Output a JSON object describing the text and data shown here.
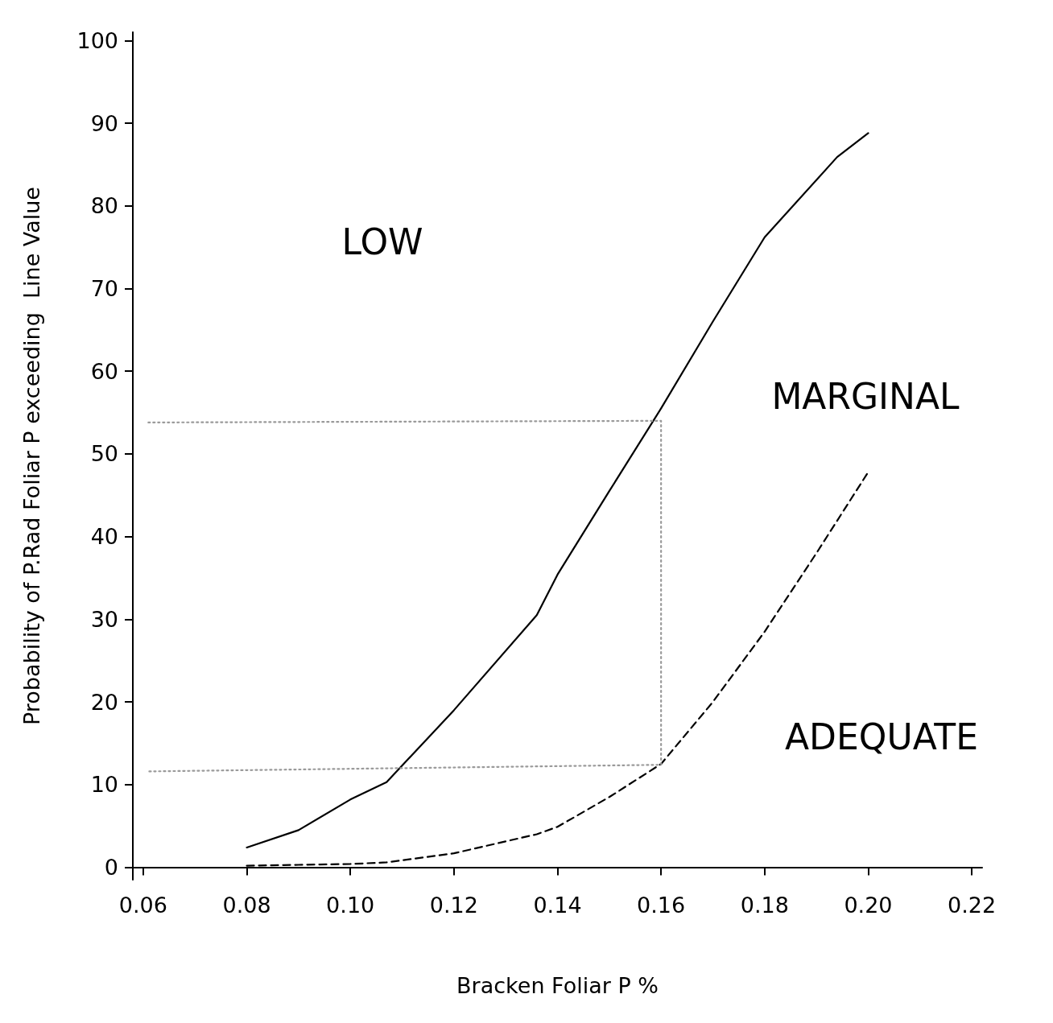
{
  "chart_data": {
    "type": "line",
    "xlabel": "Bracken Foliar P %",
    "ylabel": "Probability of P.Rad Foliar P exceeding  Line Value",
    "xlim": [
      0.058,
      0.222
    ],
    "xticks": [
      {
        "value": 0.06,
        "label": "0.06"
      },
      {
        "value": 0.08,
        "label": "0.08"
      },
      {
        "value": 0.1,
        "label": "0.10"
      },
      {
        "value": 0.12,
        "label": "0.12"
      },
      {
        "value": 0.14,
        "label": "0.14"
      },
      {
        "value": 0.16,
        "label": "0.16"
      },
      {
        "value": 0.18,
        "label": "0.18"
      },
      {
        "value": 0.2,
        "label": "0.20"
      },
      {
        "value": 0.22,
        "label": "0.22"
      }
    ],
    "ylim": [
      -1.5,
      101
    ],
    "yticks": [
      0,
      10,
      20,
      30,
      40,
      50,
      60,
      70,
      80,
      90,
      100
    ],
    "grid": false,
    "marker": "none",
    "series": [
      {
        "color": "#000000",
        "line_style": "solid",
        "x": [
          0.08,
          0.09,
          0.1,
          0.107,
          0.12,
          0.136,
          0.14,
          0.15,
          0.16,
          0.17,
          0.18,
          0.194,
          0.2
        ],
        "values": [
          2.4,
          4.5,
          8.2,
          10.3,
          19,
          30.5,
          35.4,
          45.5,
          55.5,
          66,
          76.2,
          85.9,
          88.8
        ]
      },
      {
        "color": "#000000",
        "line_style": "dashed",
        "x": [
          0.08,
          0.09,
          0.1,
          0.107,
          0.12,
          0.136,
          0.14,
          0.15,
          0.16,
          0.17,
          0.18,
          0.19,
          0.2
        ],
        "values": [
          0.2,
          0.3,
          0.4,
          0.6,
          1.7,
          4,
          4.9,
          8.5,
          12.5,
          20,
          28.5,
          38,
          47.8
        ]
      },
      {
        "color": "#9a9a9a",
        "line_style": "dotted",
        "x": [
          0.061,
          0.16,
          0.16,
          0.061
        ],
        "values": [
          53.8,
          54,
          12.4,
          11.6
        ]
      }
    ],
    "annotations": [
      "LOW",
      "MARGINAL",
      "ADEQUATE"
    ]
  }
}
